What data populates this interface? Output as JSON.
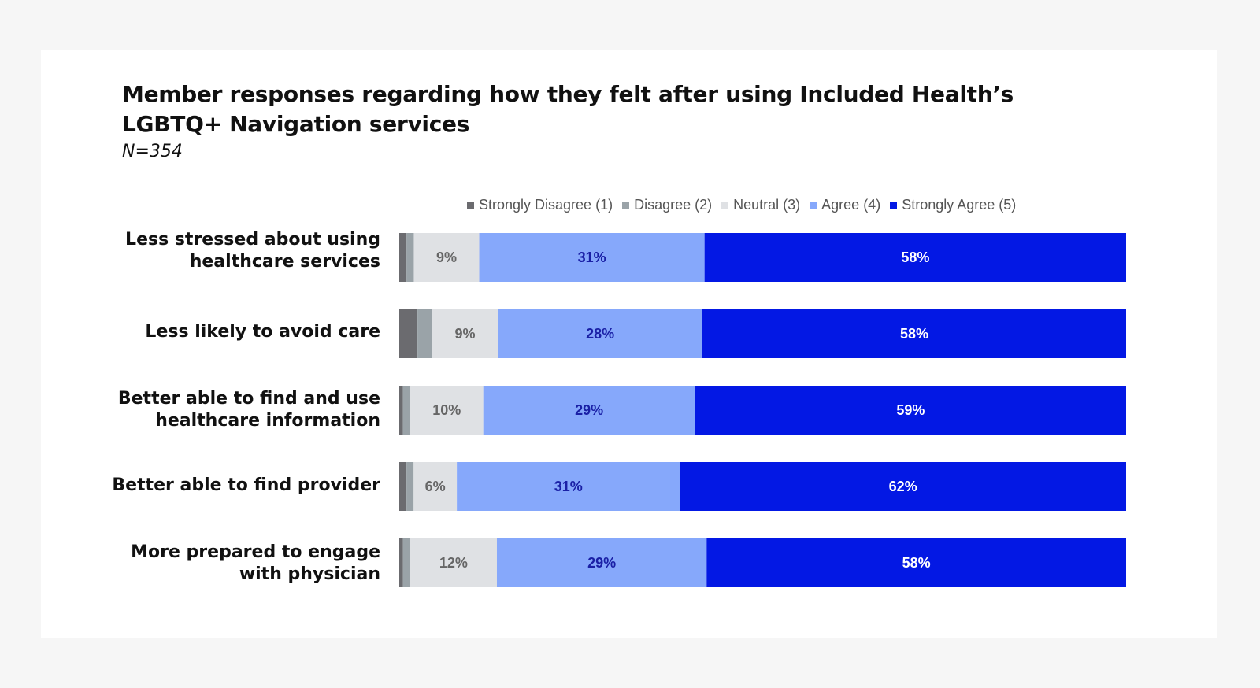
{
  "chart_data": {
    "type": "bar",
    "orientation": "horizontal",
    "stacked": true,
    "title": "Member responses regarding how they felt after using Included Health’s LGBTQ+ Navigation services",
    "subtitle": "N=354",
    "legend_position": "top",
    "categories": [
      "Less stressed about using healthcare services",
      "Less likely to avoid care",
      "Better able to find and use healthcare information",
      "Better able to find provider",
      "More prepared to engage with physician"
    ],
    "series": [
      {
        "name": "Strongly Disagree (1)",
        "color": "#6b6b6f",
        "label_color": "",
        "values": [
          1,
          2.5,
          0.5,
          1,
          0.5
        ],
        "labels": [
          "",
          "",
          "",
          "",
          ""
        ]
      },
      {
        "name": "Disagree (2)",
        "color": "#9aa3a8",
        "label_color": "",
        "values": [
          1,
          2,
          1,
          1,
          1
        ],
        "labels": [
          "",
          "",
          "",
          "",
          ""
        ]
      },
      {
        "name": "Neutral (3)",
        "color": "#dfe1e4",
        "label_color": "#666666",
        "values": [
          9,
          9,
          10,
          6,
          12
        ],
        "labels": [
          "9%",
          "9%",
          "10%",
          "6%",
          "12%"
        ]
      },
      {
        "name": "Agree (4)",
        "color": "#86a8fb",
        "label_color": "#1a20a6",
        "values": [
          31,
          28,
          29,
          31,
          29
        ],
        "labels": [
          "31%",
          "28%",
          "29%",
          "31%",
          "29%"
        ]
      },
      {
        "name": "Strongly Agree (5)",
        "color": "#0318e4",
        "label_color": "#ffffff",
        "values": [
          58,
          58,
          59,
          62,
          58
        ],
        "labels": [
          "58%",
          "58%",
          "59%",
          "62%",
          "58%"
        ]
      }
    ],
    "xlim": [
      0,
      100
    ]
  }
}
